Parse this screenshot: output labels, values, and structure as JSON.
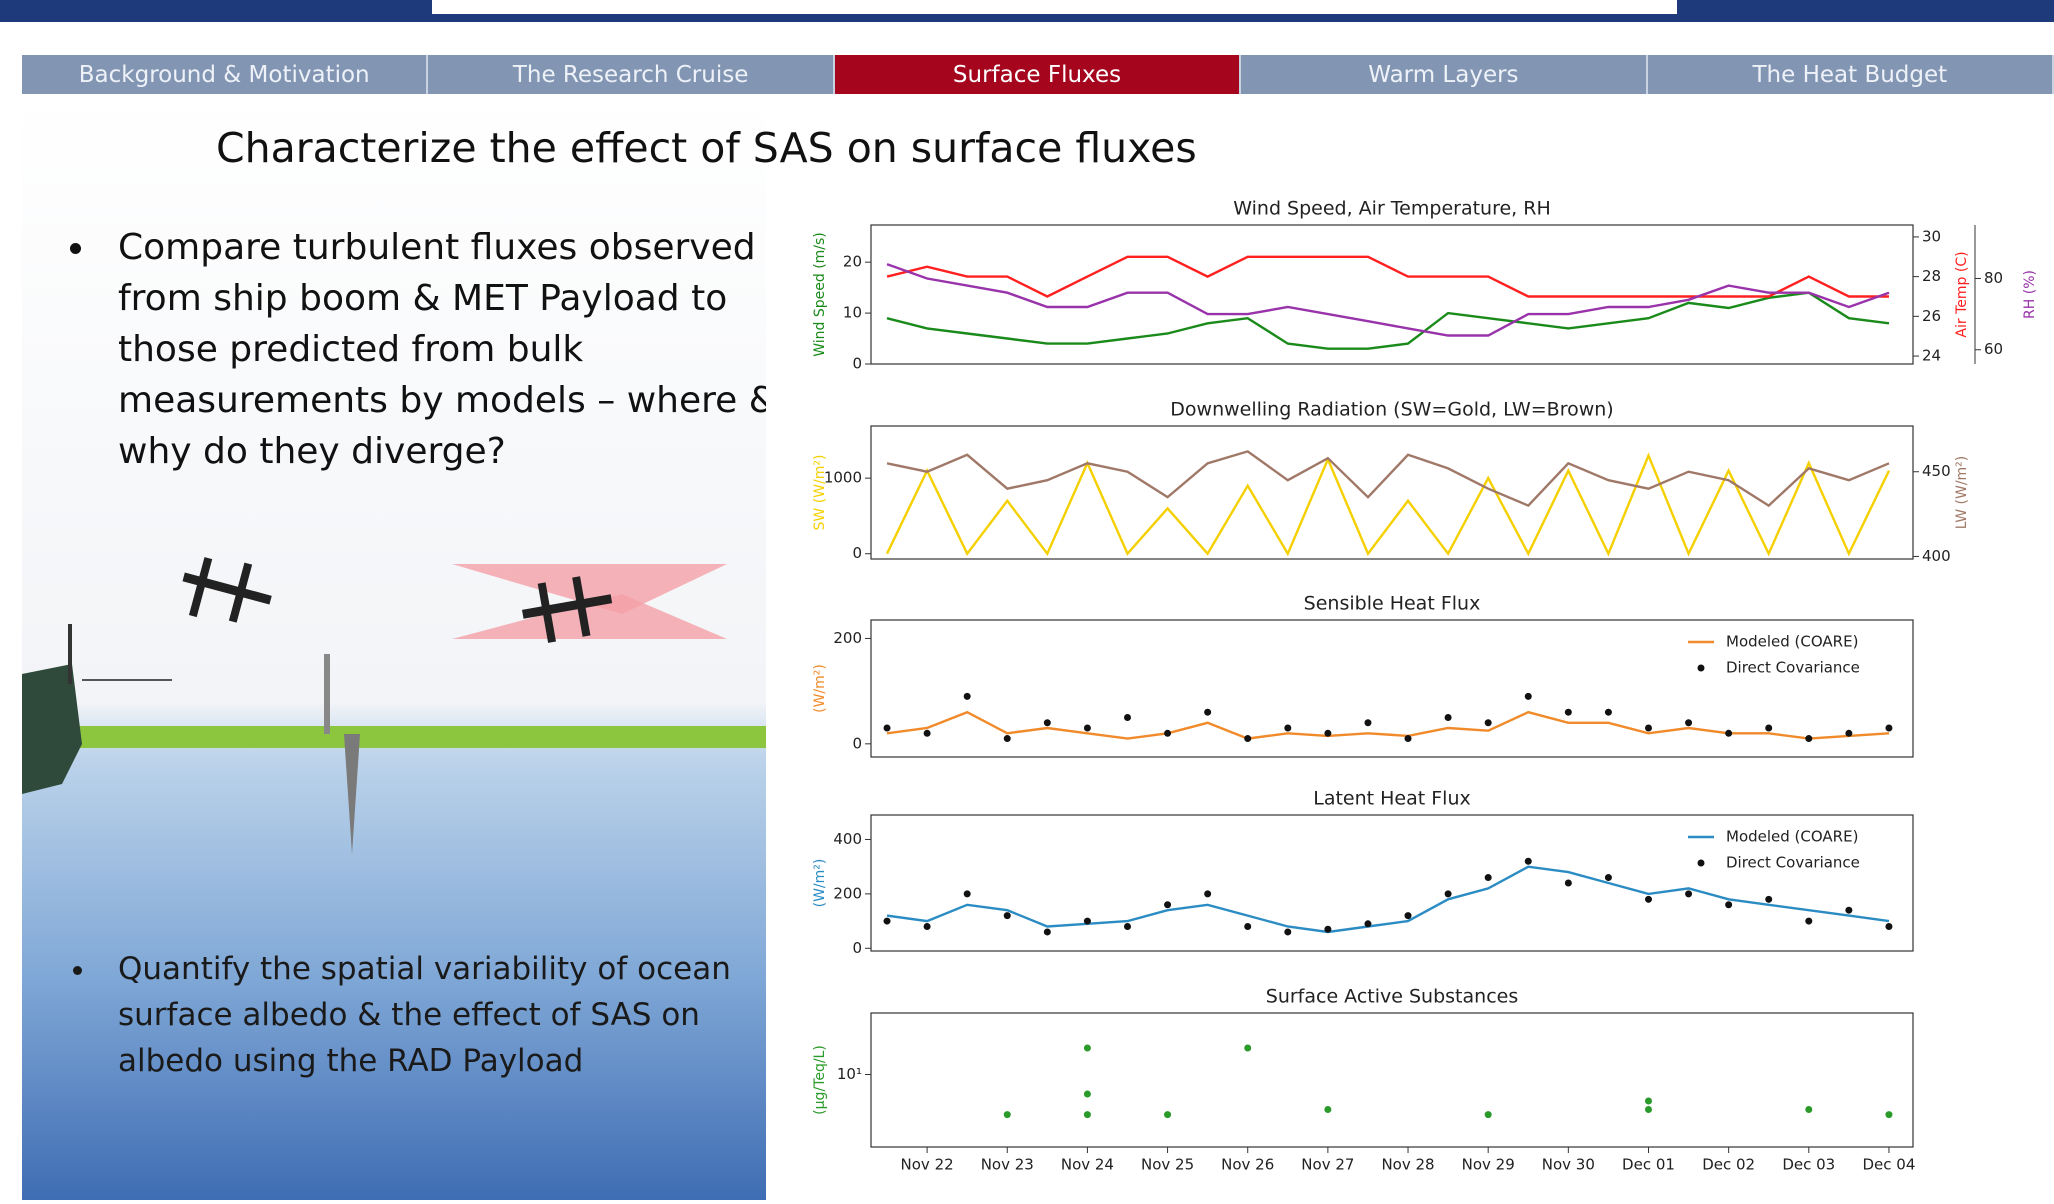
{
  "nav": {
    "tabs": [
      "Background & Motivation",
      "The Research Cruise",
      "Surface Fluxes",
      "Warm Layers",
      "The Heat Budget"
    ],
    "active": 2
  },
  "slide": {
    "title": "Characterize the effect of SAS on surface fluxes",
    "bullets": [
      "Compare turbulent fluxes observed from ship boom & MET Payload to those predicted from bulk measurements by models – where & why do they diverge?",
      "Quantify the spatial variability of ocean surface albedo & the effect of SAS on albedo using the RAD Payload"
    ]
  },
  "chart_data": [
    {
      "type": "line",
      "title": "Wind Speed, Air Temperature, RH",
      "x": [
        -0.5,
        0,
        0.5,
        1,
        1.5,
        2,
        2.5,
        3,
        3.5,
        4,
        4.5,
        5,
        5.5,
        6,
        6.5,
        7,
        7.5,
        8,
        8.5,
        9,
        9.5,
        10,
        10.5,
        11,
        11.5,
        12
      ],
      "xlim": [
        -0.7,
        12.3
      ],
      "ylabel": "Wind Speed (m/s)",
      "ylim": [
        0,
        27.3
      ],
      "yticks": [
        0,
        10,
        20
      ],
      "y2label": "Air Temp (C)",
      "y2lim": [
        23.6,
        30.6
      ],
      "y2ticks": [
        24,
        26,
        28,
        30
      ],
      "y3label": "RH (%)",
      "y3lim": [
        56,
        95
      ],
      "y3ticks": [
        60,
        80
      ],
      "series": [
        {
          "type": "line",
          "color": "#1a8a1a",
          "axis": "y",
          "values": [
            9,
            7,
            6,
            5,
            4,
            4,
            5,
            6,
            8,
            9,
            4,
            3,
            3,
            4,
            10,
            9,
            8,
            7,
            8,
            9,
            12,
            11,
            13,
            14,
            9,
            8
          ]
        },
        {
          "type": "line",
          "color": "#ff2020",
          "axis": "y2",
          "values": [
            28,
            28.5,
            28,
            28,
            27,
            28,
            29,
            29,
            28,
            29,
            29,
            29,
            29,
            28,
            28,
            28,
            27,
            27,
            27,
            27,
            27,
            27,
            27,
            28,
            27,
            27
          ]
        },
        {
          "type": "line",
          "color": "#9933aa",
          "axis": "y3",
          "values": [
            84,
            80,
            78,
            76,
            72,
            72,
            76,
            76,
            70,
            70,
            72,
            70,
            68,
            66,
            64,
            64,
            70,
            70,
            72,
            72,
            74,
            78,
            76,
            76,
            72,
            76
          ]
        }
      ]
    },
    {
      "type": "line",
      "title": "Downwelling Radiation (SW=Gold, LW=Brown)",
      "x": [
        -0.5,
        0,
        0.5,
        1,
        1.5,
        2,
        2.5,
        3,
        3.5,
        4,
        4.5,
        5,
        5.5,
        6,
        6.5,
        7,
        7.5,
        8,
        8.5,
        9,
        9.5,
        10,
        10.5,
        11,
        11.5,
        12
      ],
      "xlim": [
        -0.7,
        12.3
      ],
      "ylabel": "SW (W/m²)",
      "ylim": [
        -70,
        1690
      ],
      "yticks": [
        0,
        1000
      ],
      "y2label": "LW (W/m²)",
      "y2lim": [
        398.5,
        477
      ],
      "y2ticks": [
        400,
        450
      ],
      "series": [
        {
          "type": "line",
          "color": "#f5d000",
          "axis": "y",
          "values": [
            0,
            1100,
            0,
            700,
            0,
            1200,
            0,
            600,
            0,
            900,
            0,
            1250,
            0,
            700,
            0,
            1000,
            0,
            1100,
            0,
            1300,
            0,
            1100,
            0,
            1200,
            0,
            1100
          ]
        },
        {
          "type": "line",
          "color": "#a07868",
          "axis": "y2",
          "values": [
            455,
            450,
            460,
            440,
            445,
            455,
            450,
            435,
            455,
            462,
            445,
            458,
            435,
            460,
            452,
            440,
            430,
            455,
            445,
            440,
            450,
            445,
            430,
            452,
            445,
            455
          ]
        }
      ]
    },
    {
      "type": "line",
      "title": "Sensible Heat Flux",
      "x": [
        -0.5,
        0,
        0.5,
        1,
        1.5,
        2,
        2.5,
        3,
        3.5,
        4,
        4.5,
        5,
        5.5,
        6,
        6.5,
        7,
        7.5,
        8,
        8.5,
        9,
        9.5,
        10,
        10.5,
        11,
        11.5,
        12
      ],
      "xlim": [
        -0.7,
        12.3
      ],
      "ylabel": "(W/m²)",
      "ylim": [
        -25,
        235
      ],
      "yticks": [
        0,
        200
      ],
      "series": [
        {
          "type": "line",
          "name": "Modeled (COARE)",
          "color": "#f08a2a",
          "values": [
            20,
            30,
            60,
            20,
            30,
            20,
            10,
            20,
            40,
            10,
            20,
            15,
            20,
            15,
            30,
            25,
            60,
            40,
            40,
            20,
            30,
            20,
            20,
            10,
            15,
            20
          ]
        },
        {
          "type": "scatter",
          "name": "Direct Covariance",
          "color": "#111111",
          "values": [
            30,
            20,
            90,
            10,
            40,
            30,
            50,
            20,
            60,
            10,
            30,
            20,
            40,
            10,
            50,
            40,
            90,
            60,
            60,
            30,
            40,
            20,
            30,
            10,
            20,
            30
          ]
        }
      ]
    },
    {
      "type": "line",
      "title": "Latent Heat Flux",
      "x": [
        -0.5,
        0,
        0.5,
        1,
        1.5,
        2,
        2.5,
        3,
        3.5,
        4,
        4.5,
        5,
        5.5,
        6,
        6.5,
        7,
        7.5,
        8,
        8.5,
        9,
        9.5,
        10,
        10.5,
        11,
        11.5,
        12
      ],
      "xlim": [
        -0.7,
        12.3
      ],
      "ylabel": "(W/m²)",
      "ylim": [
        -10,
        490
      ],
      "yticks": [
        0,
        200,
        400
      ],
      "series": [
        {
          "type": "line",
          "name": "Modeled (COARE)",
          "color": "#2b8cc4",
          "values": [
            120,
            100,
            160,
            140,
            80,
            90,
            100,
            140,
            160,
            120,
            80,
            60,
            80,
            100,
            180,
            220,
            300,
            280,
            240,
            200,
            220,
            180,
            160,
            140,
            120,
            100
          ]
        },
        {
          "type": "scatter",
          "name": "Direct Covariance",
          "color": "#111111",
          "values": [
            100,
            80,
            200,
            120,
            60,
            100,
            80,
            160,
            200,
            80,
            60,
            70,
            90,
            120,
            200,
            260,
            320,
            240,
            260,
            180,
            200,
            160,
            180,
            100,
            140,
            80
          ]
        }
      ]
    },
    {
      "type": "scatter",
      "title": "Surface Active Substances",
      "x": [
        1,
        2,
        2,
        2,
        3,
        4,
        5,
        7,
        9,
        9,
        11,
        12
      ],
      "xlim": [
        -0.7,
        12.3
      ],
      "ylabel": "(µg/Teq/L)",
      "log": true,
      "ylim": [
        1.5,
        50
      ],
      "yticks": [
        {
          "value": 10,
          "label": "10¹"
        }
      ],
      "xticks": [
        {
          "value": 0,
          "label": "Nov 22"
        },
        {
          "value": 1,
          "label": "Nov 23"
        },
        {
          "value": 2,
          "label": "Nov 24"
        },
        {
          "value": 3,
          "label": "Nov 25"
        },
        {
          "value": 4,
          "label": "Nov 26"
        },
        {
          "value": 5,
          "label": "Nov 27"
        },
        {
          "value": 6,
          "label": "Nov 28"
        },
        {
          "value": 7,
          "label": "Nov 29"
        },
        {
          "value": 8,
          "label": "Nov 30"
        },
        {
          "value": 9,
          "label": "Dec 01"
        },
        {
          "value": 10,
          "label": "Dec 02"
        },
        {
          "value": 11,
          "label": "Dec 03"
        },
        {
          "value": 12,
          "label": "Dec 04"
        }
      ],
      "series": [
        {
          "type": "scatter",
          "color": "#2a9a2a",
          "values": [
            3.5,
            3.5,
            6,
            20,
            3.5,
            20,
            4,
            3.5,
            4,
            5,
            4,
            3.5
          ]
        }
      ]
    }
  ]
}
